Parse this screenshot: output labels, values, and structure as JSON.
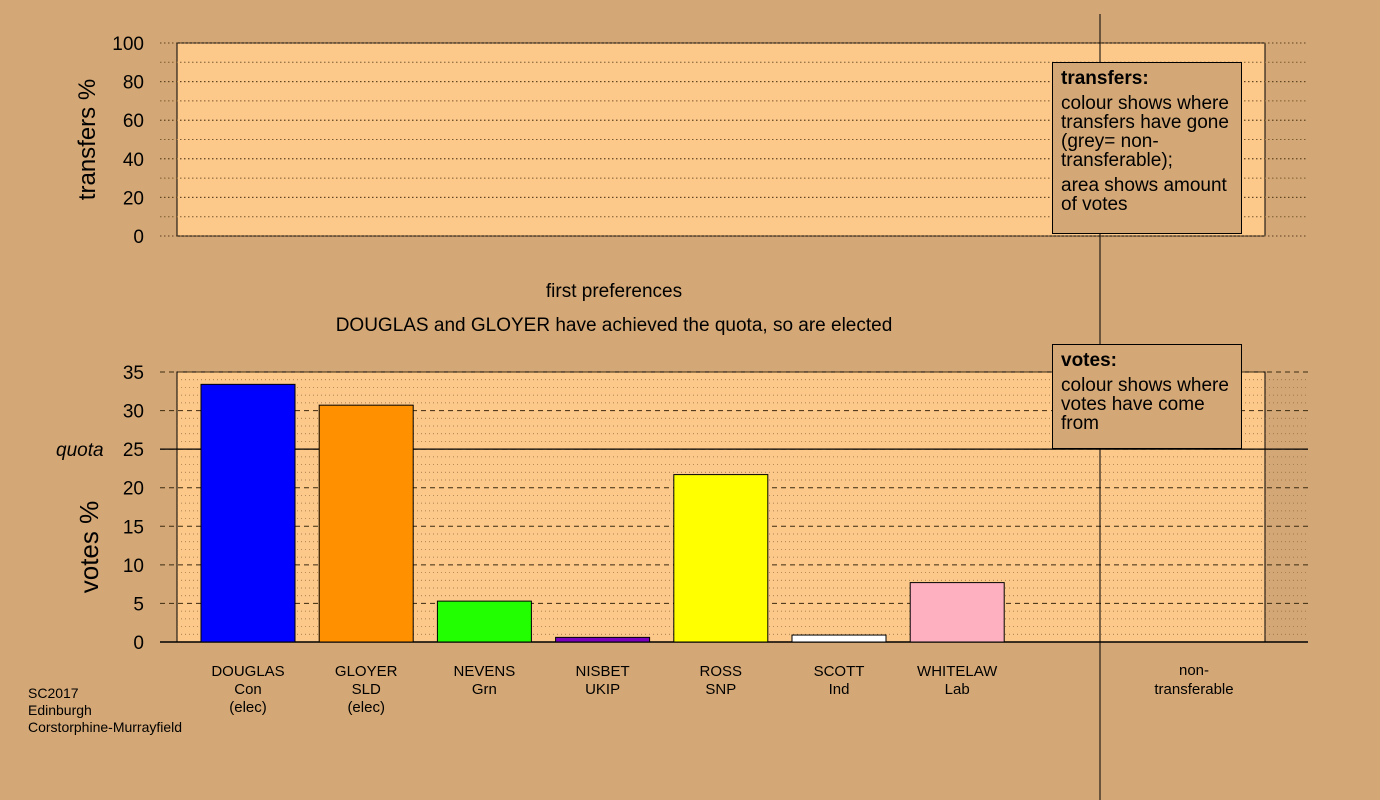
{
  "stage": "first preferences",
  "message": "DOUGLAS and GLOYER have achieved the quota, so are elected",
  "footer": [
    "SC2017",
    "Edinburgh",
    "Corstorphine-Murrayfield"
  ],
  "transfers_legend": {
    "title": "transfers:",
    "lines": [
      "colour shows where transfers have gone (grey= non-transferable);",
      "area shows amount of votes"
    ]
  },
  "votes_legend": {
    "title": "votes:",
    "lines": [
      "colour shows where votes have come from"
    ]
  },
  "colors": {
    "background": "#d4a876",
    "plot_fill": "#fdc98b"
  },
  "chart_data": [
    {
      "type": "bar",
      "ylabel": "transfers %",
      "ylim": [
        0,
        100
      ],
      "yticks": [
        0,
        20,
        40,
        60,
        80,
        100
      ],
      "categories": [],
      "values": []
    },
    {
      "type": "bar",
      "ylabel": "votes %",
      "ylim": [
        0,
        35
      ],
      "yticks": [
        0,
        5,
        10,
        15,
        20,
        25,
        30,
        35
      ],
      "quota": 25,
      "quota_label": "quota",
      "categories": [
        {
          "name": "DOUGLAS",
          "party": "Con",
          "note": "(elec)",
          "value": 33.4,
          "color": "#0000ff"
        },
        {
          "name": "GLOYER",
          "party": "SLD",
          "note": "(elec)",
          "value": 30.7,
          "color": "#ff9100"
        },
        {
          "name": "NEVENS",
          "party": "Grn",
          "note": "",
          "value": 5.3,
          "color": "#22ff00"
        },
        {
          "name": "NISBET",
          "party": "UKIP",
          "note": "",
          "value": 0.6,
          "color": "#7a00bb"
        },
        {
          "name": "ROSS",
          "party": "SNP",
          "note": "",
          "value": 21.7,
          "color": "#ffff00"
        },
        {
          "name": "SCOTT",
          "party": "Ind",
          "note": "",
          "value": 0.9,
          "color": "#ffffff"
        },
        {
          "name": "WHITELAW",
          "party": "Lab",
          "note": "",
          "value": 7.7,
          "color": "#ffb0c0"
        }
      ],
      "extra_category": {
        "line1": "non-",
        "line2": "transferable"
      }
    }
  ]
}
